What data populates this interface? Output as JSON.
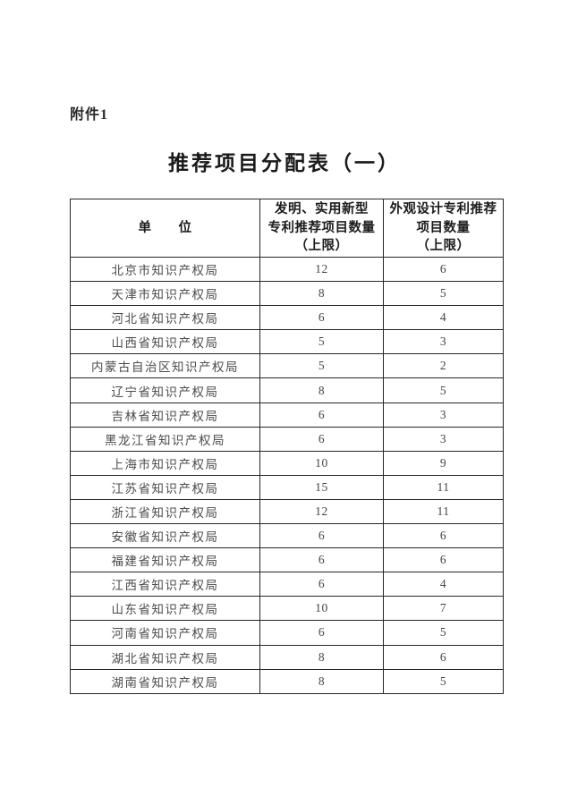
{
  "page": {
    "attachment_label": "附件1",
    "title": "推荐项目分配表（一）"
  },
  "table": {
    "header": {
      "unit": "单　　位",
      "invention": "发明、实用新型\n专利推荐项目数量\n（上限）",
      "design": "外观设计专利推荐\n项目数量\n（上限）"
    },
    "rows": [
      {
        "unit": "北京市知识产权局",
        "invention": "12",
        "design": "6",
        "separator_above": true
      },
      {
        "unit": "天津市知识产权局",
        "invention": "8",
        "design": "5",
        "separator_above": false
      },
      {
        "unit": "河北省知识产权局",
        "invention": "6",
        "design": "4",
        "separator_above": true
      },
      {
        "unit": "山西省知识产权局",
        "invention": "5",
        "design": "3",
        "separator_above": true
      },
      {
        "unit": "内蒙古自治区知识产权局",
        "invention": "5",
        "design": "2",
        "separator_above": true
      },
      {
        "unit": "辽宁省知识产权局",
        "invention": "8",
        "design": "5",
        "separator_above": false
      },
      {
        "unit": "吉林省知识产权局",
        "invention": "6",
        "design": "3",
        "separator_above": true
      },
      {
        "unit": "黑龙江省知识产权局",
        "invention": "6",
        "design": "3",
        "separator_above": true
      },
      {
        "unit": "上海市知识产权局",
        "invention": "10",
        "design": "9",
        "separator_above": true
      },
      {
        "unit": "江苏省知识产权局",
        "invention": "15",
        "design": "11",
        "separator_above": true
      },
      {
        "unit": "浙江省知识产权局",
        "invention": "12",
        "design": "11",
        "separator_above": false
      },
      {
        "unit": "安徽省知识产权局",
        "invention": "6",
        "design": "6",
        "separator_above": true
      },
      {
        "unit": "福建省知识产权局",
        "invention": "6",
        "design": "6",
        "separator_above": true
      },
      {
        "unit": "江西省知识产权局",
        "invention": "6",
        "design": "4",
        "separator_above": true
      },
      {
        "unit": "山东省知识产权局",
        "invention": "10",
        "design": "7",
        "separator_above": true
      },
      {
        "unit": "河南省知识产权局",
        "invention": "6",
        "design": "5",
        "separator_above": true
      },
      {
        "unit": "湖北省知识产权局",
        "invention": "8",
        "design": "6",
        "separator_above": true
      },
      {
        "unit": "湖南省知识产权局",
        "invention": "8",
        "design": "5",
        "separator_above": true
      }
    ]
  }
}
